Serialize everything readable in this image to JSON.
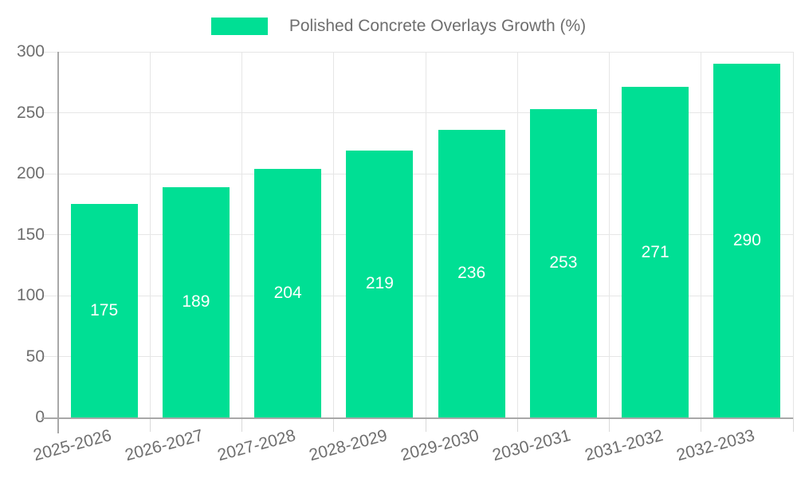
{
  "chart_data": {
    "type": "bar",
    "title": "Polished Concrete Overlays Growth (%)",
    "categories": [
      "2025-2026",
      "2026-2027",
      "2027-2028",
      "2028-2029",
      "2029-2030",
      "2030-2031",
      "2031-2032",
      "2032-2033"
    ],
    "values": [
      175,
      189,
      204,
      219,
      236,
      253,
      271,
      290
    ],
    "xlabel": "",
    "ylabel": "",
    "ylim": [
      0,
      300
    ],
    "yticks": [
      0,
      50,
      100,
      150,
      200,
      250,
      300
    ],
    "legend_position": "top",
    "grid": "horizontal-and-vertical",
    "x_label_rotation_deg": -15,
    "colors": {
      "bar": "#00df94",
      "data_label": "#ffffff",
      "axis_text": "#6e6e6e",
      "grid_line": "#e6e6e6",
      "axis_line": "#a8a8a8",
      "tick_mark": "#d9d9d9",
      "background": "#ffffff"
    }
  }
}
